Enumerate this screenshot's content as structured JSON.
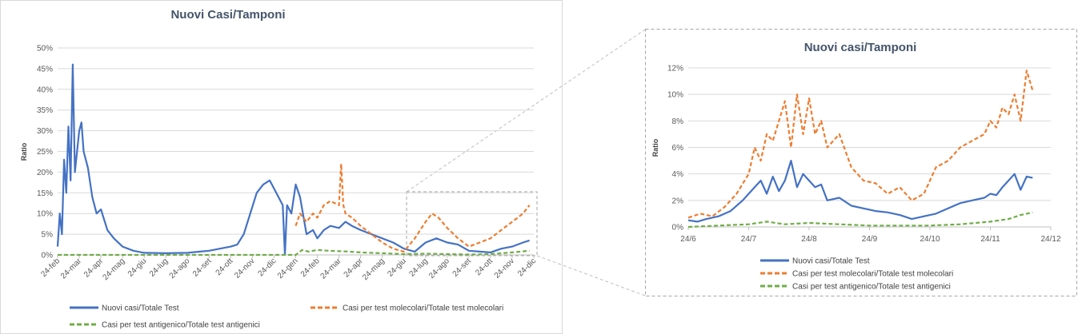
{
  "chart_data": [
    {
      "type": "line",
      "title": "Nuovi Casi/Tamponi",
      "ylabel": "Ratio",
      "xlabel": "",
      "ylim": [
        0,
        0.5
      ],
      "yticks": [
        "0%",
        "5%",
        "10%",
        "15%",
        "20%",
        "25%",
        "30%",
        "35%",
        "40%",
        "45%",
        "50%"
      ],
      "xticks": [
        "24-feb",
        "24-mar",
        "24-apr",
        "24-mag",
        "24-giu",
        "24-lug",
        "24-ago",
        "24-set",
        "24-ott",
        "24-nov",
        "24-dic",
        "24-gen",
        "24-feb",
        "24-mar",
        "24-apr",
        "24-mag",
        "24-giu",
        "24-lug",
        "24-ago",
        "24-set",
        "24-ott",
        "24-nov",
        "24-dic"
      ],
      "grid": true,
      "legend_position": "bottom",
      "series": [
        {
          "name": "Nuovi casi/Totale Test",
          "color": "#4472C4",
          "style": "solid",
          "x": [
            0,
            0.1,
            0.2,
            0.3,
            0.4,
            0.5,
            0.6,
            0.7,
            0.8,
            1,
            1.1,
            1.2,
            1.4,
            1.6,
            1.8,
            2,
            2.3,
            2.6,
            3,
            3.5,
            4,
            5,
            6,
            7,
            7.5,
            8,
            8.3,
            8.6,
            8.9,
            9.2,
            9.5,
            9.8,
            10,
            10.2,
            10.4,
            10.5,
            10.6,
            10.8,
            11,
            11.2,
            11.5,
            11.8,
            12,
            12.3,
            12.6,
            13,
            13.3,
            13.6,
            14,
            14.5,
            15,
            15.5,
            16,
            16.5,
            17,
            17.5,
            18,
            18.5,
            19,
            19.5,
            20,
            20.5,
            21,
            21.5,
            21.8
          ],
          "y": [
            0.02,
            0.1,
            0.05,
            0.23,
            0.15,
            0.31,
            0.18,
            0.46,
            0.2,
            0.3,
            0.32,
            0.25,
            0.21,
            0.14,
            0.1,
            0.11,
            0.06,
            0.04,
            0.02,
            0.01,
            0.005,
            0.004,
            0.005,
            0.01,
            0.015,
            0.02,
            0.025,
            0.05,
            0.1,
            0.15,
            0.17,
            0.18,
            0.16,
            0.14,
            0.12,
            0.0,
            0.12,
            0.1,
            0.17,
            0.14,
            0.05,
            0.06,
            0.04,
            0.06,
            0.07,
            0.065,
            0.08,
            0.07,
            0.06,
            0.05,
            0.04,
            0.03,
            0.015,
            0.008,
            0.03,
            0.04,
            0.03,
            0.025,
            0.01,
            0.008,
            0.006,
            0.015,
            0.02,
            0.03,
            0.035
          ]
        },
        {
          "name": "Casi per test molecolari/Totale test molecolari",
          "color": "#ED7D31",
          "style": "dashed",
          "x": [
            11,
            11.2,
            11.5,
            11.8,
            12,
            12.3,
            12.6,
            13,
            13.1,
            13.2,
            13.3,
            13.6,
            14,
            14.5,
            15,
            15.5,
            16,
            16.5,
            17,
            17.3,
            17.6,
            18,
            18.5,
            19,
            19.5,
            20,
            20.5,
            21,
            21.5,
            21.8
          ],
          "y": [
            0.07,
            0.1,
            0.08,
            0.1,
            0.09,
            0.12,
            0.13,
            0.12,
            0.22,
            0.12,
            0.1,
            0.09,
            0.07,
            0.05,
            0.03,
            0.015,
            0.008,
            0.04,
            0.08,
            0.1,
            0.09,
            0.065,
            0.04,
            0.02,
            0.03,
            0.04,
            0.06,
            0.08,
            0.1,
            0.12
          ]
        },
        {
          "name": "Casi per test antigenico/Totale test antigenici",
          "color": "#70AD47",
          "style": "dashed",
          "x": [
            0,
            2,
            4,
            6,
            8,
            10,
            11,
            11.3,
            11.6,
            12,
            12.5,
            13,
            13.5,
            14,
            15,
            16,
            17,
            18,
            19,
            20,
            21,
            21.8
          ],
          "y": [
            0,
            0,
            0,
            0,
            0,
            0,
            0,
            0.012,
            0.008,
            0.012,
            0.01,
            0.009,
            0.008,
            0.006,
            0.004,
            0.002,
            0.003,
            0.002,
            0.001,
            0.002,
            0.006,
            0.01
          ]
        }
      ]
    },
    {
      "type": "line",
      "title": "Nuovi casi/Tamponi",
      "ylabel": "Ratio",
      "xlabel": "",
      "ylim": [
        0,
        0.12
      ],
      "yticks": [
        "0%",
        "2%",
        "4%",
        "6%",
        "8%",
        "10%",
        "12%"
      ],
      "xticks": [
        "24/6",
        "24/7",
        "24/8",
        "24/9",
        "24/10",
        "24/11",
        "24/12"
      ],
      "grid": true,
      "legend_position": "bottom",
      "series": [
        {
          "name": "Nuovi casi/Totale Test",
          "color": "#4472C4",
          "style": "solid",
          "x": [
            0,
            0.15,
            0.3,
            0.5,
            0.7,
            0.9,
            1.0,
            1.1,
            1.2,
            1.3,
            1.4,
            1.5,
            1.6,
            1.7,
            1.8,
            1.9,
            2.0,
            2.1,
            2.2,
            2.3,
            2.5,
            2.7,
            2.9,
            3.1,
            3.3,
            3.5,
            3.7,
            3.9,
            4.1,
            4.3,
            4.5,
            4.7,
            4.9,
            5.0,
            5.1,
            5.2,
            5.3,
            5.4,
            5.5,
            5.6,
            5.7
          ],
          "y": [
            0.005,
            0.004,
            0.006,
            0.008,
            0.012,
            0.02,
            0.025,
            0.03,
            0.035,
            0.025,
            0.038,
            0.027,
            0.035,
            0.05,
            0.03,
            0.04,
            0.035,
            0.03,
            0.032,
            0.02,
            0.022,
            0.016,
            0.014,
            0.012,
            0.011,
            0.009,
            0.006,
            0.008,
            0.01,
            0.014,
            0.018,
            0.02,
            0.022,
            0.025,
            0.024,
            0.03,
            0.035,
            0.04,
            0.028,
            0.038,
            0.037
          ]
        },
        {
          "name": "Casi per test molecolari/Totale test molecolari",
          "color": "#ED7D31",
          "style": "dashed",
          "x": [
            0,
            0.2,
            0.4,
            0.6,
            0.8,
            1.0,
            1.1,
            1.2,
            1.3,
            1.4,
            1.5,
            1.6,
            1.7,
            1.8,
            1.9,
            2.0,
            2.1,
            2.2,
            2.3,
            2.5,
            2.7,
            2.9,
            3.1,
            3.3,
            3.5,
            3.7,
            3.9,
            4.1,
            4.3,
            4.5,
            4.7,
            4.9,
            5.0,
            5.1,
            5.2,
            5.3,
            5.4,
            5.5,
            5.6,
            5.7
          ],
          "y": [
            0.007,
            0.01,
            0.008,
            0.015,
            0.025,
            0.04,
            0.06,
            0.05,
            0.07,
            0.065,
            0.08,
            0.095,
            0.06,
            0.1,
            0.07,
            0.097,
            0.07,
            0.08,
            0.06,
            0.07,
            0.045,
            0.035,
            0.033,
            0.025,
            0.03,
            0.02,
            0.025,
            0.045,
            0.05,
            0.06,
            0.065,
            0.07,
            0.08,
            0.075,
            0.09,
            0.085,
            0.1,
            0.08,
            0.118,
            0.103
          ]
        },
        {
          "name": "Casi per test antigenico/Totale test antigenici",
          "color": "#70AD47",
          "style": "dashed",
          "x": [
            0,
            0.5,
            1.0,
            1.3,
            1.6,
            2.0,
            2.5,
            3.0,
            3.5,
            4.0,
            4.5,
            5.0,
            5.3,
            5.5,
            5.7
          ],
          "y": [
            0.0,
            0.001,
            0.002,
            0.004,
            0.002,
            0.003,
            0.002,
            0.001,
            0.001,
            0.001,
            0.002,
            0.004,
            0.006,
            0.009,
            0.011
          ]
        }
      ]
    }
  ]
}
